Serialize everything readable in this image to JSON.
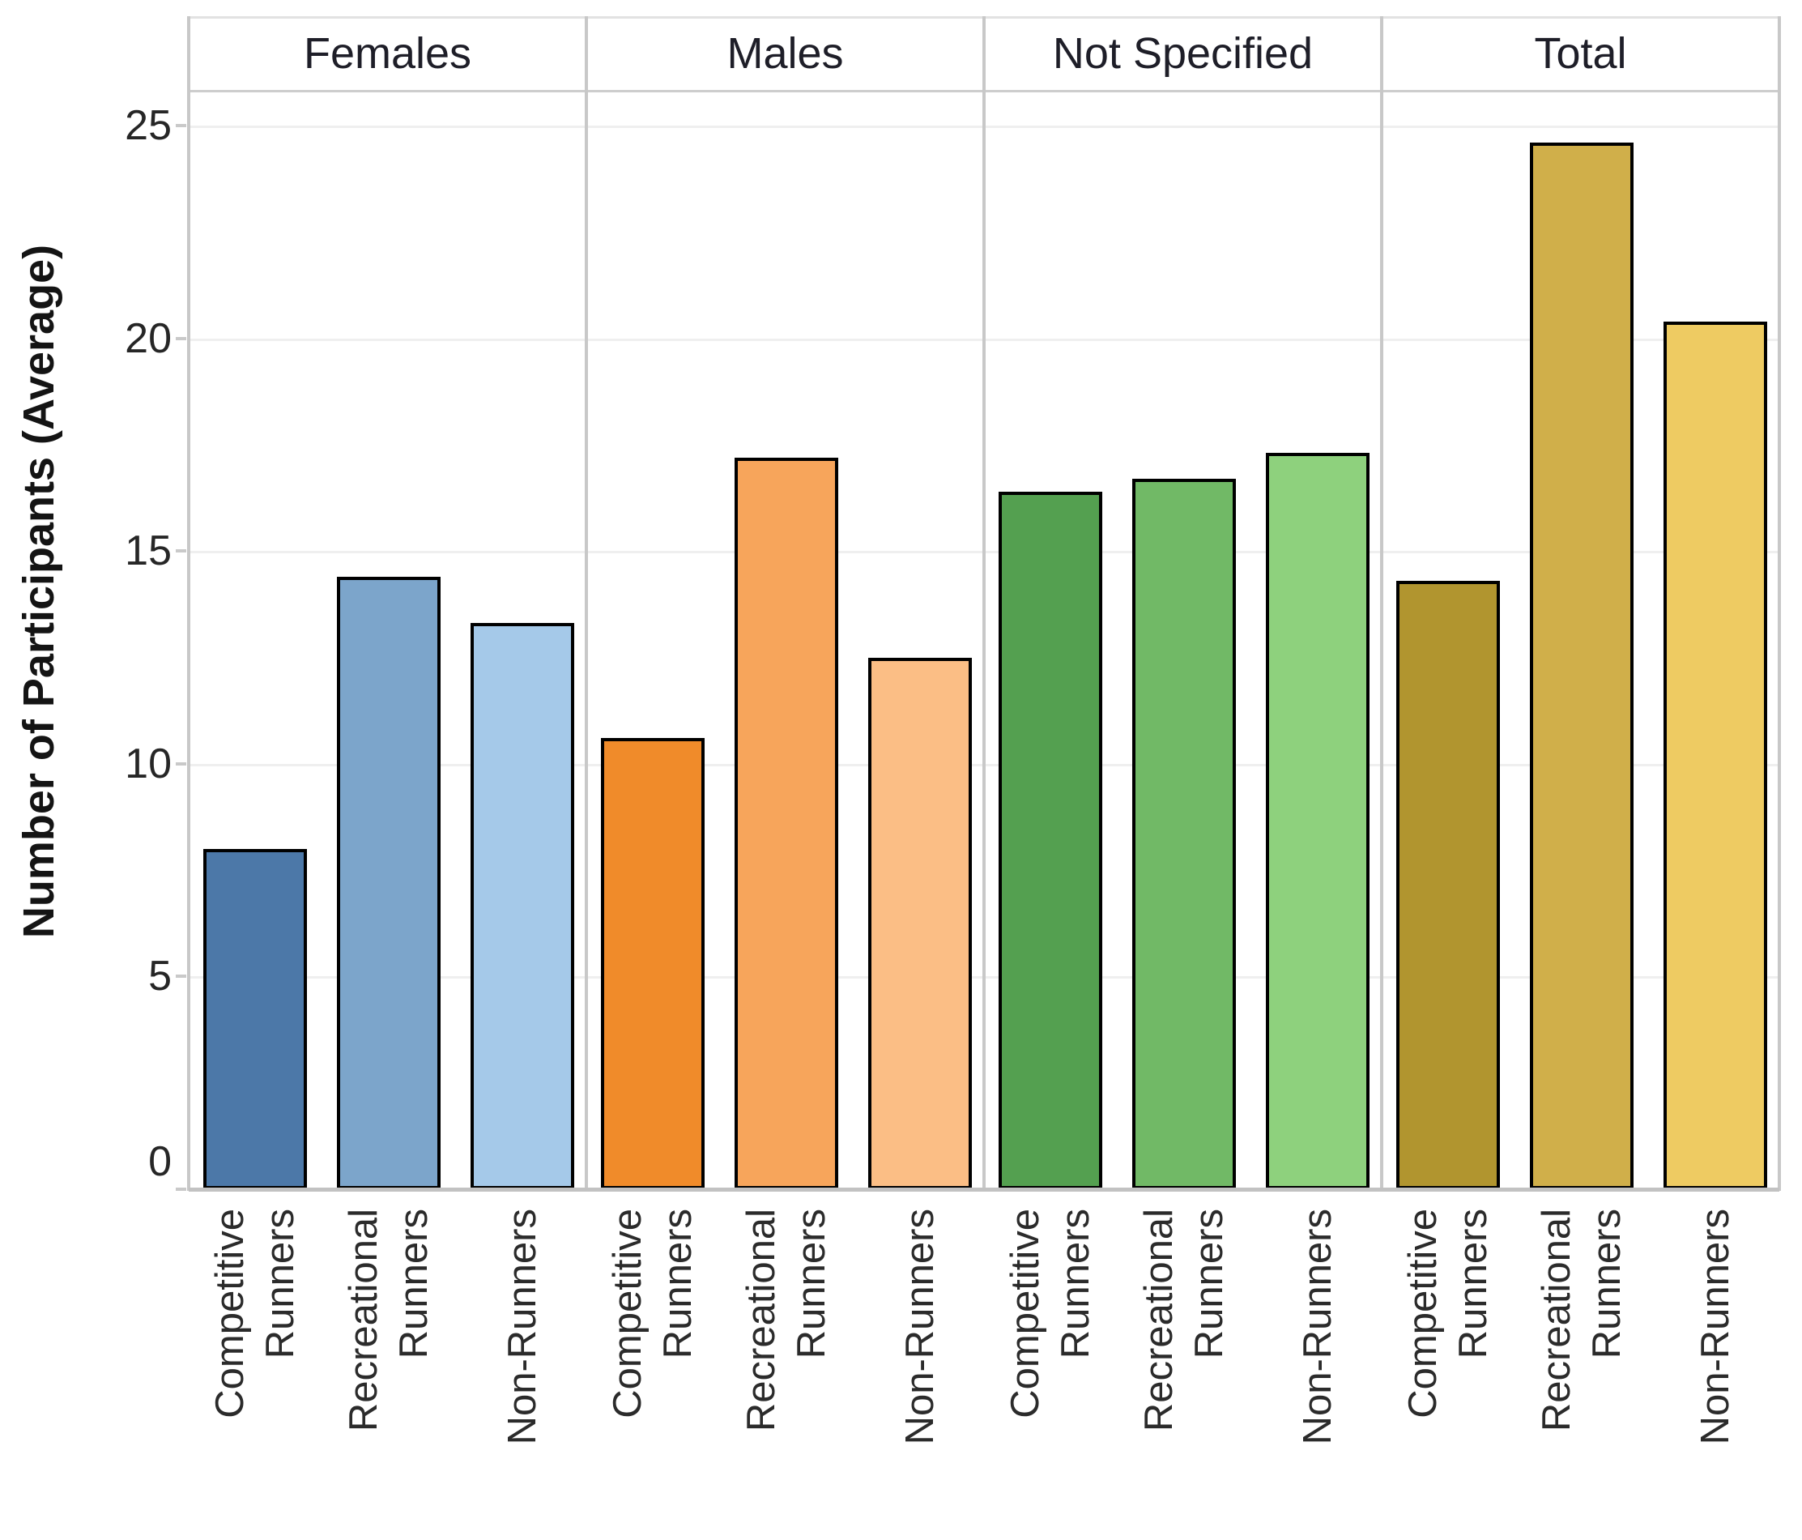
{
  "chart_data": {
    "type": "bar",
    "title": "",
    "ylabel": "Number of Participants (Average)",
    "xlabel": "",
    "ylim": [
      0,
      25.8
    ],
    "yticks": [
      0,
      5,
      10,
      15,
      20,
      25
    ],
    "grid": true,
    "legend_position": "none",
    "categories": [
      "Competitive\nRunners",
      "Recreational\nRunners",
      "Non-Runners"
    ],
    "groups": [
      {
        "label": "Females",
        "values": [
          8.0,
          14.4,
          13.3
        ],
        "colors": [
          "#4C78A8",
          "#7CA5CB",
          "#A5C9E9"
        ]
      },
      {
        "label": "Males",
        "values": [
          10.6,
          17.2,
          12.5
        ],
        "colors": [
          "#F08B2A",
          "#F7A55B",
          "#FBBE85"
        ]
      },
      {
        "label": "Not Specified",
        "values": [
          16.4,
          16.7,
          17.3
        ],
        "colors": [
          "#54A050",
          "#71B966",
          "#8ED17D"
        ]
      },
      {
        "label": "Total",
        "values": [
          14.3,
          24.6,
          20.4
        ],
        "colors": [
          "#B1952F",
          "#D0AF4A",
          "#EECB62"
        ]
      }
    ],
    "bar_border_color": "#000000",
    "gridline_color": "#efefef",
    "axis_line_color": "#c2c2c2"
  }
}
